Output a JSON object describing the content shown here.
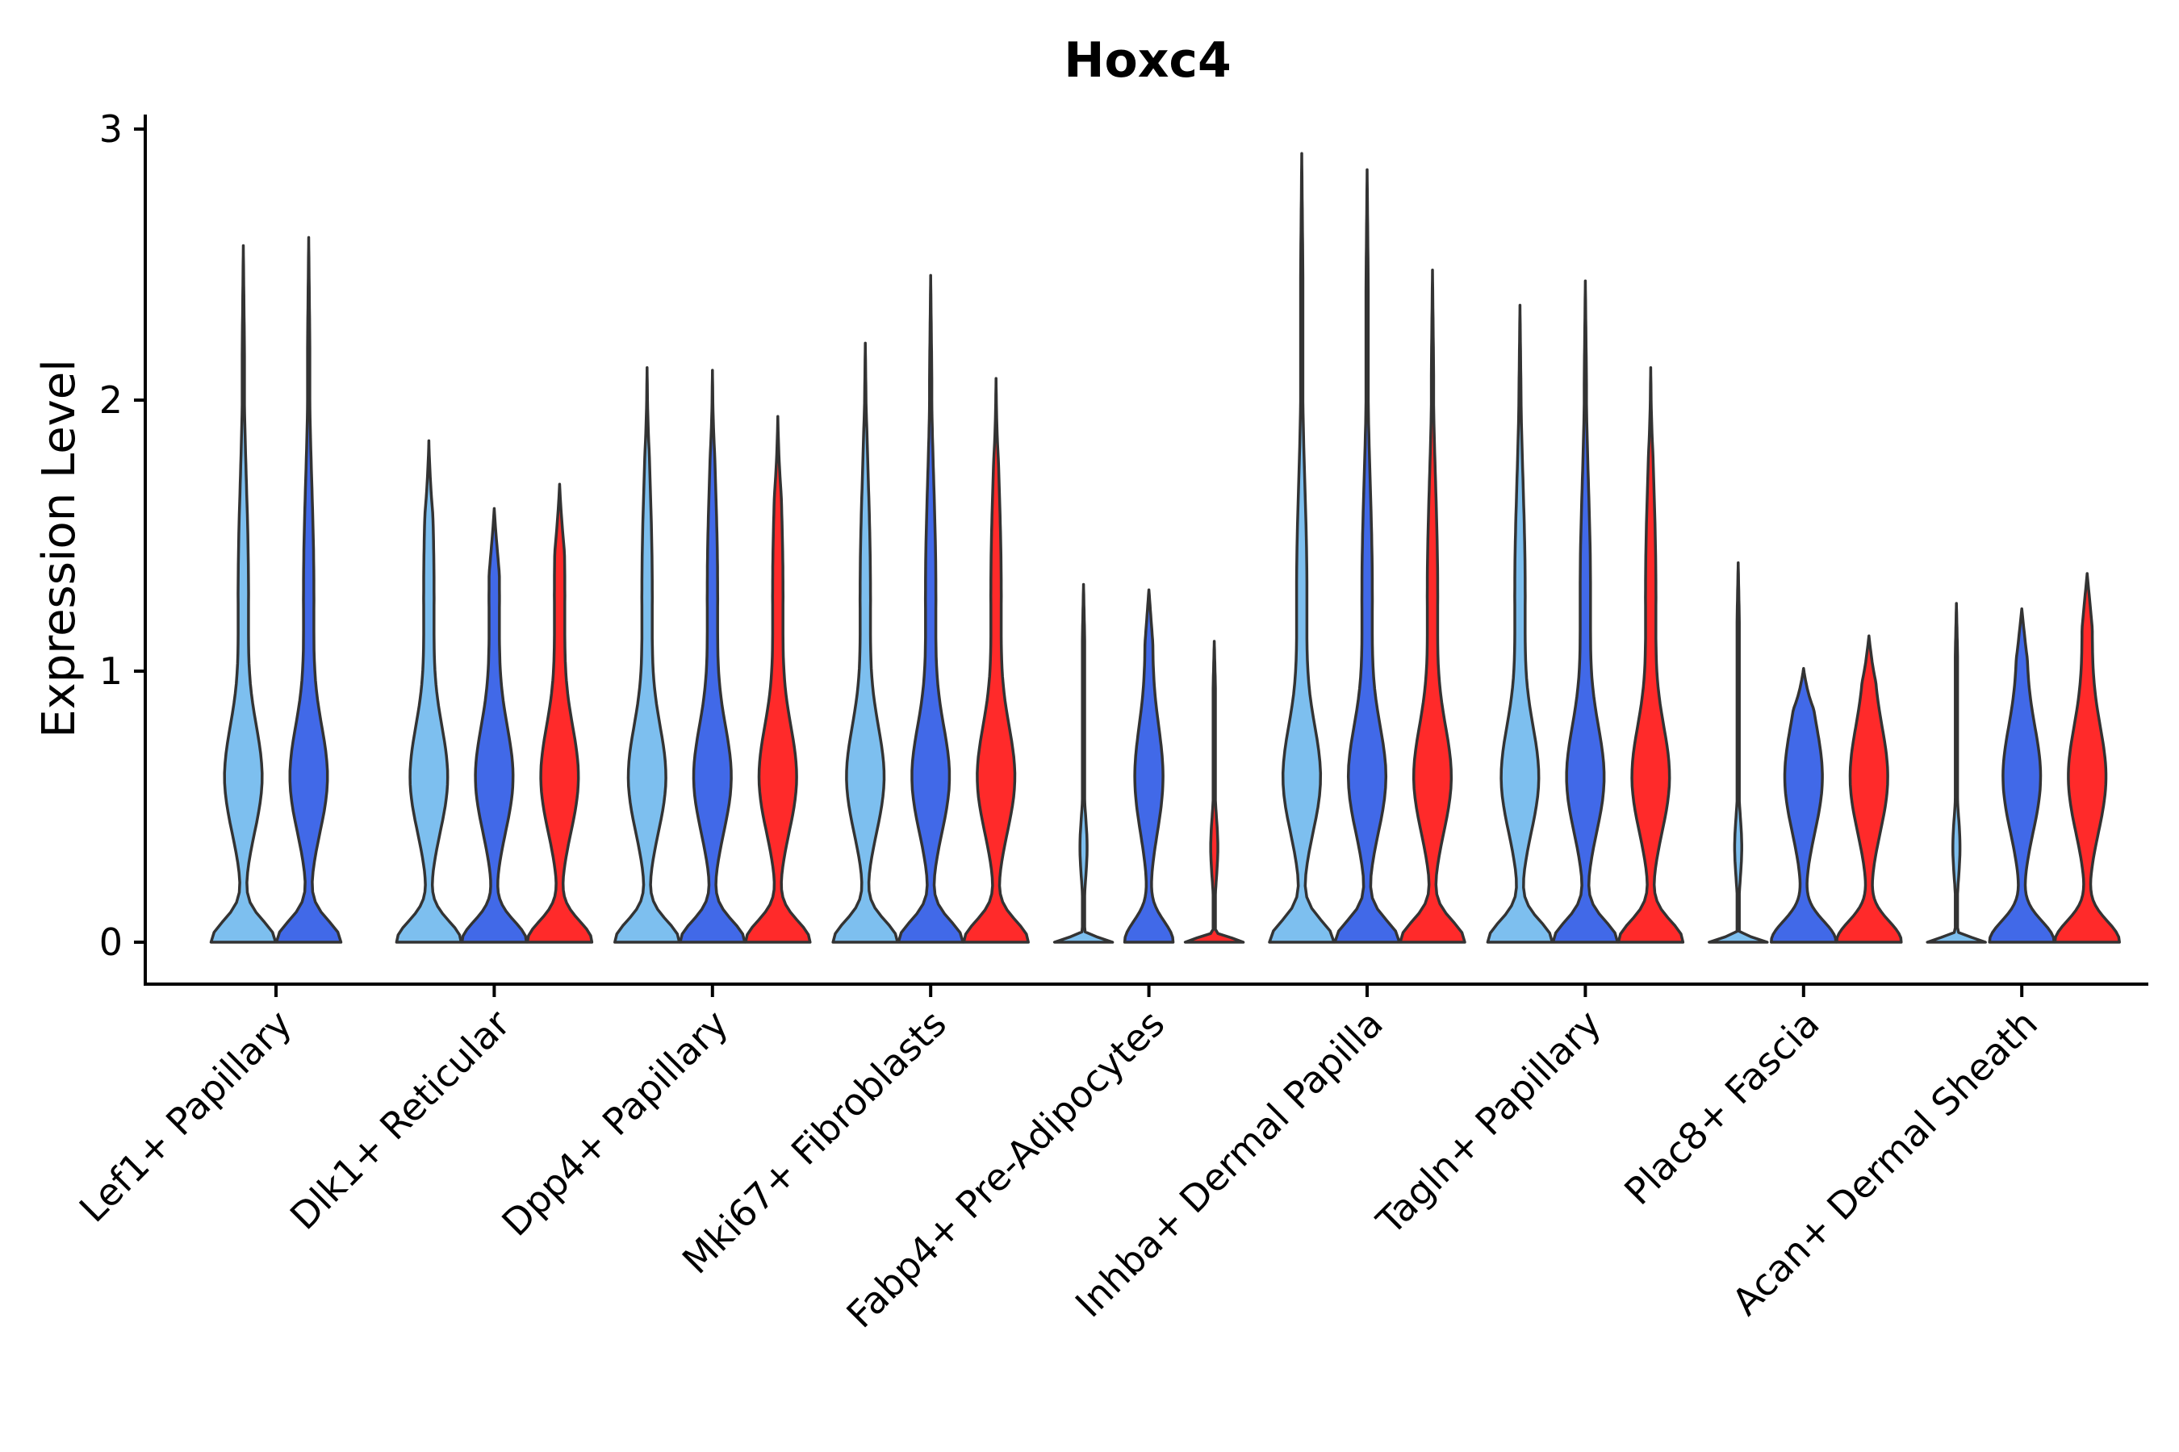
{
  "chart_data": {
    "type": "violin",
    "title": "Hoxc4",
    "xlabel": "",
    "ylabel": "Expression Level",
    "ylim": [
      -0.15,
      3.05
    ],
    "yticks": [
      0,
      1,
      2,
      3
    ],
    "colors": {
      "group1": "#7DBFEF",
      "group2": "#4169E8",
      "group3": "#FF2A2A"
    },
    "categories": [
      "Lef1+ Papillary",
      "Dlk1+ Reticular",
      "Dpp4+ Papillary",
      "Mki67+ Fibroblasts",
      "Fabp4+ Pre-Adipocytes",
      "Inhba+ Dermal Papilla",
      "Tagln+ Papillary",
      "Plac8+ Fascia",
      "Acan+ Dermal Sheath"
    ],
    "series": [
      {
        "name": "group1",
        "max": [
          2.57,
          1.85,
          2.12,
          2.21,
          1.32,
          2.91,
          2.35,
          1.4,
          1.25
        ]
      },
      {
        "name": "group2",
        "max": [
          2.6,
          1.6,
          2.11,
          2.46,
          1.3,
          2.85,
          2.44,
          1.01,
          1.23
        ]
      },
      {
        "name": "group3",
        "max": [
          null,
          1.69,
          1.94,
          2.08,
          1.11,
          2.48,
          2.12,
          1.13,
          1.36
        ]
      }
    ]
  }
}
